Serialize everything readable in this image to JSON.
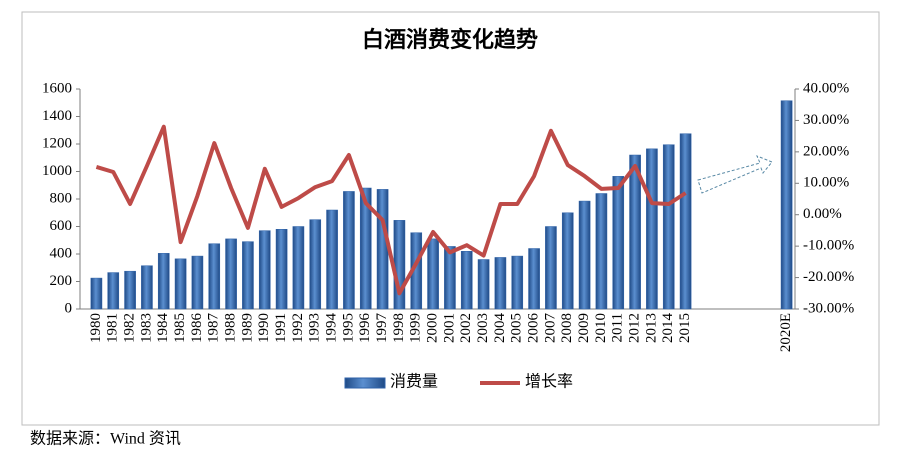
{
  "chart_data": {
    "type": "bar",
    "title": "白酒消费变化趋势",
    "categories": [
      "1980",
      "1981",
      "1982",
      "1983",
      "1984",
      "1985",
      "1986",
      "1987",
      "1988",
      "1989",
      "1990",
      "1991",
      "1992",
      "1993",
      "1994",
      "1995",
      "1996",
      "1997",
      "1998",
      "1999",
      "2000",
      "2001",
      "2002",
      "2003",
      "2004",
      "2005",
      "2006",
      "2007",
      "2008",
      "2009",
      "2010",
      "2011",
      "2012",
      "2013",
      "2014",
      "2015",
      null,
      null,
      null,
      null,
      null,
      "2020E"
    ],
    "series": [
      {
        "name": "消费量",
        "type": "bar",
        "color": "#2f62a8",
        "values": [
          225,
          265,
          275,
          315,
          405,
          365,
          385,
          475,
          510,
          490,
          570,
          580,
          600,
          650,
          720,
          855,
          880,
          870,
          645,
          555,
          510,
          455,
          420,
          360,
          375,
          385,
          440,
          600,
          700,
          785,
          840,
          965,
          1120,
          1165,
          1195,
          1275,
          null,
          null,
          null,
          null,
          null,
          1515
        ]
      },
      {
        "name": "增长率",
        "type": "line",
        "axis": "y2",
        "color": "#be4b48",
        "values": [
          15.2,
          13.6,
          3.4,
          15.5,
          28,
          -8.7,
          6,
          22.8,
          8.5,
          -4.2,
          14.6,
          2.5,
          5.3,
          8.8,
          10.7,
          19,
          3.7,
          -1.7,
          -25,
          -15.4,
          -5.5,
          -12,
          -9.7,
          -13,
          3.4,
          3.4,
          12.3,
          26.7,
          15.8,
          12.3,
          8.2,
          8.5,
          15.5,
          3.7,
          3.4,
          6.9,
          null,
          null,
          null,
          null,
          null,
          null
        ]
      }
    ],
    "ylim": [
      0,
      1600
    ],
    "yticks": [
      0,
      200,
      400,
      600,
      800,
      1000,
      1200,
      1400,
      1600
    ],
    "y2lim": [
      -30,
      40
    ],
    "y2ticks": [
      {
        "value": -30,
        "label": "-30.00%"
      },
      {
        "value": -20,
        "label": "-20.00%"
      },
      {
        "value": -10,
        "label": "-10.00%"
      },
      {
        "value": 0,
        "label": "0.00%"
      },
      {
        "value": 10,
        "label": "10.00%"
      },
      {
        "value": 20,
        "label": "20.00%"
      },
      {
        "value": 30,
        "label": "30.00%"
      },
      {
        "value": 40,
        "label": "40.00%"
      }
    ],
    "grid": false,
    "legend": "bottom",
    "source": "数据来源：Wind 资讯"
  }
}
